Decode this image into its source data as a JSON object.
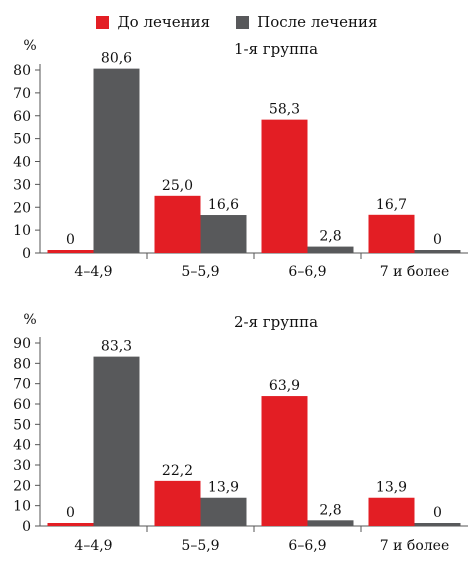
{
  "legend": {
    "before_label": "До лечения",
    "after_label": "После лечения"
  },
  "colors": {
    "before": "#e31e24",
    "after": "#58595b"
  },
  "chart_data": [
    {
      "type": "bar",
      "title": "1-я группа",
      "ylabel": "%",
      "categories": [
        "4–4,9",
        "5–5,9",
        "6–6,9",
        "7 и более"
      ],
      "ylim": [
        0,
        80
      ],
      "yticks": [
        0,
        10,
        20,
        30,
        40,
        50,
        60,
        70,
        80
      ],
      "series": [
        {
          "name": "До лечения",
          "values": [
            0,
            25.0,
            58.3,
            16.7
          ],
          "labels": [
            "0",
            "25,0",
            "58,3",
            "16,7"
          ]
        },
        {
          "name": "После лечения",
          "values": [
            80.6,
            16.6,
            2.8,
            0
          ],
          "labels": [
            "80,6",
            "16,6",
            "2,8",
            "0"
          ]
        }
      ]
    },
    {
      "type": "bar",
      "title": "2-я группа",
      "ylabel": "%",
      "categories": [
        "4–4,9",
        "5–5,9",
        "6–6,9",
        "7 и более"
      ],
      "ylim": [
        0,
        90
      ],
      "yticks": [
        0,
        10,
        20,
        30,
        40,
        50,
        60,
        70,
        80,
        90
      ],
      "series": [
        {
          "name": "До лечения",
          "values": [
            0,
            22.2,
            63.9,
            13.9
          ],
          "labels": [
            "0",
            "22,2",
            "63,9",
            "13,9"
          ]
        },
        {
          "name": "После лечения",
          "values": [
            83.3,
            13.9,
            2.8,
            0
          ],
          "labels": [
            "83,3",
            "13,9",
            "2,8",
            "0"
          ]
        }
      ]
    }
  ]
}
